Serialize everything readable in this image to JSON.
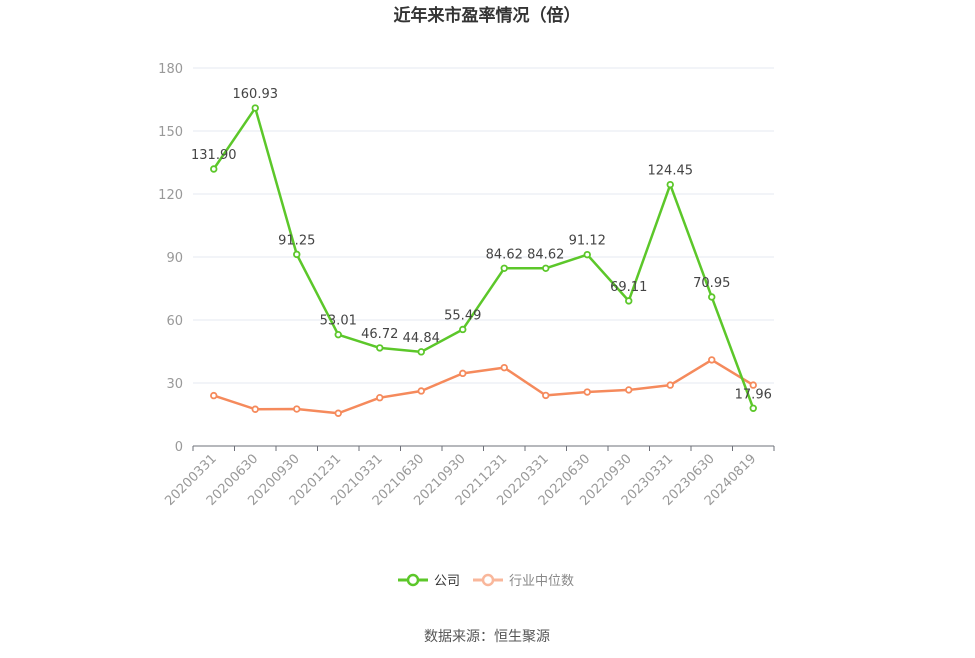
{
  "chart_data": {
    "type": "line",
    "title": "近年来市盈率情况（倍）",
    "categories": [
      "20200331",
      "20200630",
      "20200930",
      "20201231",
      "20210331",
      "20210630",
      "20210930",
      "20211231",
      "20220331",
      "20220630",
      "20220930",
      "20230331",
      "20230630",
      "20240819"
    ],
    "ylim": [
      0,
      180
    ],
    "yticks": [
      0,
      30,
      60,
      90,
      120,
      150,
      180
    ],
    "grid": true,
    "legend_position": "bottom",
    "series": [
      {
        "name": "公司",
        "color": "#5cc72a",
        "values": [
          131.9,
          160.93,
          91.25,
          53.01,
          46.72,
          44.84,
          55.49,
          84.62,
          84.62,
          91.12,
          69.11,
          124.45,
          70.95,
          17.96
        ],
        "labels": [
          "131.90",
          "160.93",
          "91.25",
          "53.01",
          "46.72",
          "44.84",
          "55.49",
          "84.62",
          "84.62",
          "91.12",
          "69.11",
          "124.45",
          "70.95",
          "17.96"
        ]
      },
      {
        "name": "行业中位数",
        "color": "#f58a5c",
        "values": [
          24.0,
          17.5,
          17.6,
          15.6,
          23.0,
          26.2,
          34.6,
          37.3,
          24.1,
          25.7,
          26.7,
          29.0,
          41.0,
          29.0
        ]
      }
    ]
  },
  "legend": {
    "company_label": "公司",
    "industry_label": "行业中位数"
  },
  "source_text": "数据来源：恒生聚源"
}
